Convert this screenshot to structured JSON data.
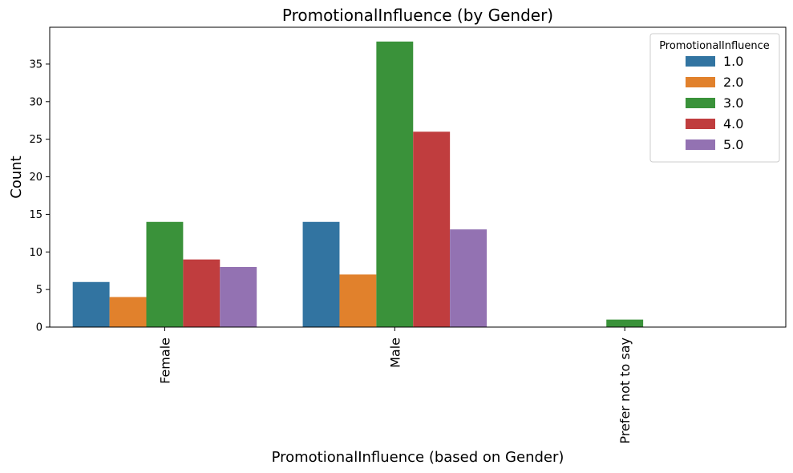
{
  "chart_data": {
    "type": "bar",
    "title": "PromotionalInfluence (by Gender)",
    "xlabel": "PromotionalInfluence (based on Gender)",
    "ylabel": "Count",
    "categories": [
      "Female",
      "Male",
      "Prefer not to say"
    ],
    "series": [
      {
        "name": "1.0",
        "color": "#3274a1",
        "values": [
          6,
          14,
          0
        ]
      },
      {
        "name": "2.0",
        "color": "#e1812c",
        "values": [
          4,
          7,
          0
        ]
      },
      {
        "name": "3.0",
        "color": "#3a923a",
        "values": [
          14,
          38,
          1
        ]
      },
      {
        "name": "4.0",
        "color": "#c03d3e",
        "values": [
          9,
          26,
          0
        ]
      },
      {
        "name": "5.0",
        "color": "#9372b2",
        "values": [
          8,
          13,
          0
        ]
      }
    ],
    "ylim": [
      0,
      39.9
    ],
    "yticks": [
      0,
      5,
      10,
      15,
      20,
      25,
      30,
      35
    ],
    "legend": {
      "title": "PromotionalInfluence",
      "placement": "top-right"
    },
    "grid": false
  }
}
